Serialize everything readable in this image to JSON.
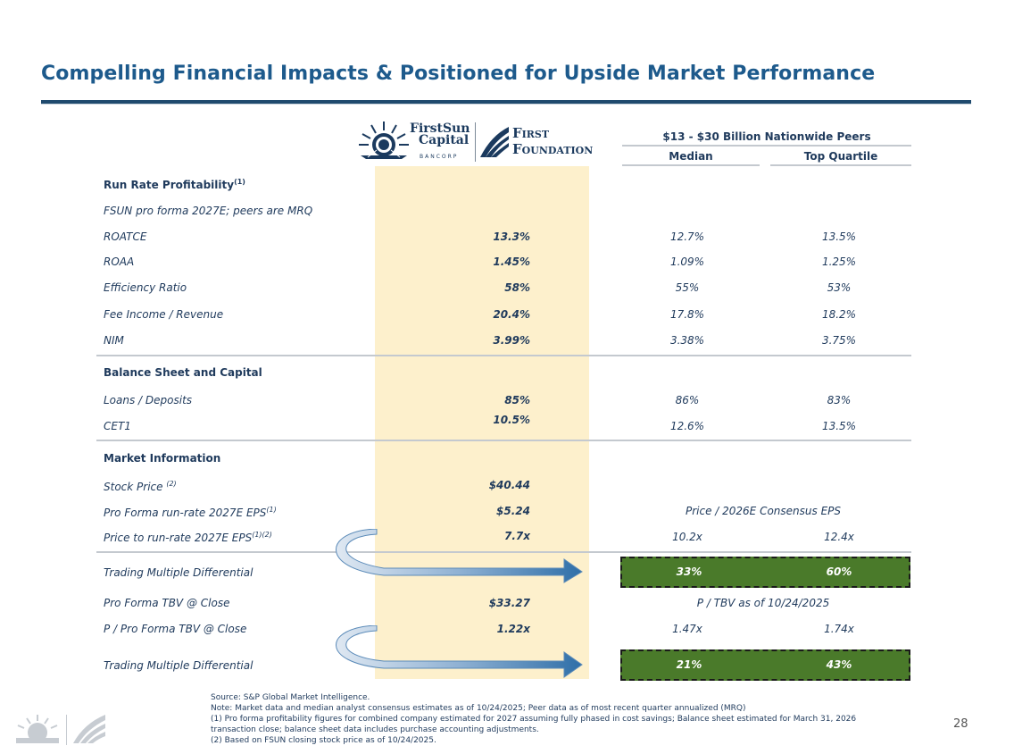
{
  "title": "Compelling Financial Impacts & Positioned for Upside Market Performance",
  "logos": {
    "fsun_name_line1": "FirstSun",
    "fsun_name_line2": "Capital",
    "fsun_sub": "BANCORP",
    "ff_line1": "First",
    "ff_line2": "Foundation"
  },
  "peers": {
    "header": "$13 - $30 Billion Nationwide Peers",
    "median": "Median",
    "top_quartile": "Top Quartile"
  },
  "sections": {
    "profitability": "Run Rate Profitability",
    "profitability_sup": "(1)",
    "profitability_note": "FSUN pro forma 2027E; peers are MRQ",
    "balance": "Balance Sheet and Capital",
    "market": "Market Information"
  },
  "rows": {
    "roatce": {
      "label": "ROATCE",
      "combo": "13.3%",
      "median": "12.7%",
      "top": "13.5%"
    },
    "roaa": {
      "label": "ROAA",
      "combo": "1.45%",
      "median": "1.09%",
      "top": "1.25%"
    },
    "eff": {
      "label": "Efficiency Ratio",
      "combo": "58%",
      "median": "55%",
      "top": "53%"
    },
    "fee": {
      "label": "Fee Income / Revenue",
      "combo": "20.4%",
      "median": "17.8%",
      "top": "18.2%"
    },
    "nim": {
      "label": "NIM",
      "combo": "3.99%",
      "median": "3.38%",
      "top": "3.75%"
    },
    "loans": {
      "label": "Loans / Deposits",
      "combo": "85%",
      "median": "86%",
      "top": "83%"
    },
    "cet1": {
      "label": "CET1",
      "combo": "10.5%",
      "median": "12.6%",
      "top": "13.5%"
    },
    "stock": {
      "label": "Stock Price",
      "sup": "(2)",
      "combo": "$40.44"
    },
    "eps": {
      "label": "Pro Forma run-rate 2027E EPS",
      "sup": "(1)",
      "combo": "$5.24",
      "peer_caption": "Price / 2026E Consensus EPS"
    },
    "pe": {
      "label": "Price to run-rate 2027E EPS",
      "sup": "(1)(2)",
      "combo": "7.7x",
      "median": "10.2x",
      "top": "12.4x"
    },
    "diff1": {
      "label": "Trading Multiple Differential",
      "median": "33%",
      "top": "60%"
    },
    "tbv": {
      "label": "Pro Forma TBV @ Close",
      "combo": "$33.27",
      "peer_caption": "P / TBV as of 10/24/2025"
    },
    "ptbv": {
      "label": "P / Pro Forma TBV @ Close",
      "combo": "1.22x",
      "median": "1.47x",
      "top": "1.74x"
    },
    "diff2": {
      "label": "Trading Multiple Differential",
      "median": "21%",
      "top": "43%"
    }
  },
  "footnotes": [
    "Source: S&P Global Market Intelligence.",
    "Note: Market data and median analyst consensus estimates as of 10/24/2025; Peer data as of most recent quarter annualized (MRQ)",
    "(1) Pro forma profitability figures for combined company estimated for 2027 assuming fully phased in cost savings; Balance sheet estimated for March 31, 2026",
    "transaction close; balance sheet data includes purchase accounting adjustments.",
    "(2) Based on FSUN closing stock price as of 10/24/2025."
  ],
  "page_number": "28",
  "colors": {
    "title": "#1d5a8c",
    "combo_band": "#fdf0cc",
    "diff_box": "#4a7a2a",
    "arrow": "#2f6fa8"
  }
}
